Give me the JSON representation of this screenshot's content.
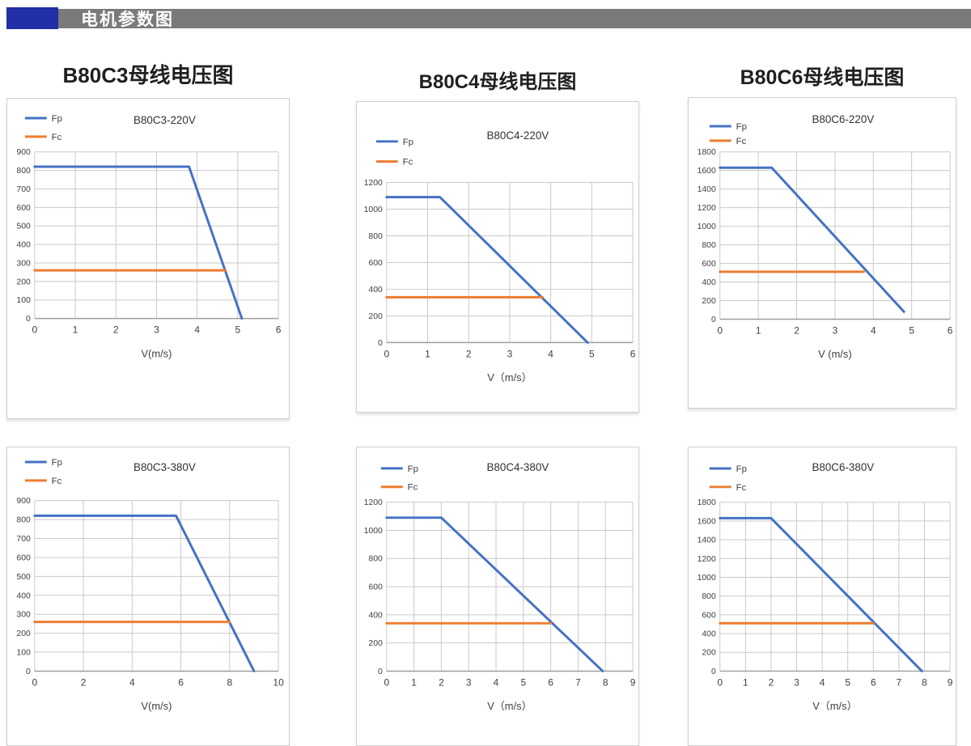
{
  "header": {
    "title": "电机参数图"
  },
  "section_titles": [
    "B80C3母线电压图",
    "B80C4母线电压图",
    "B80C6母线电压图"
  ],
  "colors": {
    "header_accent_blue": "#222fa6",
    "header_bar_gray": "#7a7a7a",
    "fp_blue": "#4472C4",
    "fc_orange": "#ED7D31",
    "grid": "#c9c9c9",
    "axis_line": "#9e9e9e",
    "tick_text": "#3f3f3f",
    "chart_title_text": "#333333"
  },
  "chart_data": [
    {
      "type": "line",
      "title": "B80C3-220V",
      "xlabel": "V(m/s)",
      "xlim": [
        0,
        6
      ],
      "xtick_step": 1,
      "ylim": [
        0,
        900
      ],
      "ytick_step": 100,
      "legend": [
        "Fp",
        "Fc"
      ],
      "legend_position": "top-left",
      "grid": true,
      "series": [
        {
          "name": "Fp",
          "color": "#4472C4",
          "points": [
            [
              0,
              820
            ],
            [
              3.8,
              820
            ],
            [
              5.1,
              0
            ]
          ]
        },
        {
          "name": "Fc",
          "color": "#ED7D31",
          "points": [
            [
              0,
              260
            ],
            [
              4.7,
              260
            ]
          ]
        }
      ]
    },
    {
      "type": "line",
      "title": "B80C4-220V",
      "xlabel": "V（m/s）",
      "xlim": [
        0,
        6
      ],
      "xtick_step": 1,
      "ylim": [
        0,
        1200
      ],
      "ytick_step": 200,
      "legend": [
        "Fp",
        "Fc"
      ],
      "legend_position": "top-left",
      "grid": true,
      "series": [
        {
          "name": "Fp",
          "color": "#4472C4",
          "points": [
            [
              0,
              1090
            ],
            [
              1.3,
              1090
            ],
            [
              4.9,
              0
            ]
          ]
        },
        {
          "name": "Fc",
          "color": "#ED7D31",
          "points": [
            [
              0,
              340
            ],
            [
              3.8,
              340
            ]
          ]
        }
      ]
    },
    {
      "type": "line",
      "title": "B80C6-220V",
      "xlabel": "V (m/s)",
      "xlim": [
        0,
        6
      ],
      "xtick_step": 1,
      "ylim": [
        0,
        1800
      ],
      "ytick_step": 200,
      "legend": [
        "Fp",
        "Fc"
      ],
      "legend_position": "top-left",
      "grid": true,
      "series": [
        {
          "name": "Fp",
          "color": "#4472C4",
          "points": [
            [
              0,
              1630
            ],
            [
              1.35,
              1630
            ],
            [
              4.8,
              80
            ]
          ]
        },
        {
          "name": "Fc",
          "color": "#ED7D31",
          "points": [
            [
              0,
              510
            ],
            [
              3.75,
              510
            ]
          ]
        }
      ]
    },
    {
      "type": "line",
      "title": "B80C3-380V",
      "xlabel": "V(m/s)",
      "xlim": [
        0,
        10
      ],
      "xtick_step": 2,
      "ylim": [
        0,
        900
      ],
      "ytick_step": 100,
      "legend": [
        "Fp",
        "Fc"
      ],
      "legend_position": "top-left",
      "grid": true,
      "series": [
        {
          "name": "Fp",
          "color": "#4472C4",
          "points": [
            [
              0,
              820
            ],
            [
              5.8,
              820
            ],
            [
              9,
              0
            ]
          ]
        },
        {
          "name": "Fc",
          "color": "#ED7D31",
          "points": [
            [
              0,
              260
            ],
            [
              8,
              260
            ]
          ]
        }
      ]
    },
    {
      "type": "line",
      "title": "B80C4-380V",
      "xlabel": "V（m/s）",
      "xlim": [
        0,
        9
      ],
      "xtick_step": 1,
      "ylim": [
        0,
        1200
      ],
      "ytick_step": 200,
      "legend": [
        "Fp",
        "Fc"
      ],
      "legend_position": "top-left",
      "grid": true,
      "series": [
        {
          "name": "Fp",
          "color": "#4472C4",
          "points": [
            [
              0,
              1090
            ],
            [
              2,
              1090
            ],
            [
              7.9,
              0
            ]
          ]
        },
        {
          "name": "Fc",
          "color": "#ED7D31",
          "points": [
            [
              0,
              340
            ],
            [
              6,
              340
            ]
          ]
        }
      ]
    },
    {
      "type": "line",
      "title": "B80C6-380V",
      "xlabel": "V（m/s）",
      "xlim": [
        0,
        9
      ],
      "xtick_step": 1,
      "ylim": [
        0,
        1800
      ],
      "ytick_step": 200,
      "legend": [
        "Fp",
        "Fc"
      ],
      "legend_position": "top-left",
      "grid": true,
      "series": [
        {
          "name": "Fp",
          "color": "#4472C4",
          "points": [
            [
              0,
              1630
            ],
            [
              2,
              1630
            ],
            [
              7.9,
              0
            ]
          ]
        },
        {
          "name": "Fc",
          "color": "#ED7D31",
          "points": [
            [
              0,
              510
            ],
            [
              6,
              510
            ]
          ]
        }
      ]
    }
  ]
}
